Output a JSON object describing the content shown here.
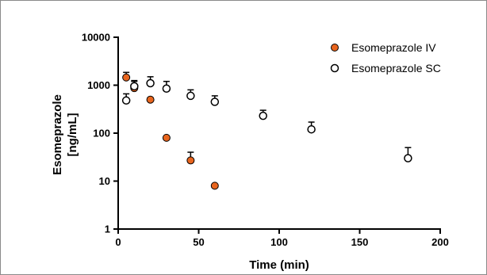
{
  "chart_data": {
    "type": "scatter",
    "xlabel": "Time (min)",
    "ylabel_lines": [
      "Esomeprazole",
      "[ng/mL]"
    ],
    "xlim": [
      0,
      200
    ],
    "ylim": [
      1,
      10000
    ],
    "yscale": "log",
    "x_ticks": [
      0,
      50,
      100,
      150,
      200
    ],
    "x_tick_labels": [
      "0",
      "50",
      "100",
      "150",
      "200"
    ],
    "y_ticks": [
      1,
      10,
      100,
      1000,
      10000
    ],
    "y_tick_labels": [
      "1",
      "10",
      "100",
      "1000",
      "10000"
    ],
    "grid": false,
    "legend_position": "top-right",
    "series": [
      {
        "name": "Esomeprazole IV",
        "marker": "filled-circle",
        "color": "#e8651e",
        "points": [
          {
            "x": 5,
            "y": 1450,
            "err": 1850
          },
          {
            "x": 10,
            "y": 870,
            "err": 1200
          },
          {
            "x": 20,
            "y": 500,
            "err": null
          },
          {
            "x": 30,
            "y": 80,
            "err": null
          },
          {
            "x": 45,
            "y": 27,
            "err": 40
          },
          {
            "x": 60,
            "y": 8,
            "err": null
          }
        ]
      },
      {
        "name": "Esomeprazole SC",
        "marker": "open-circle",
        "color": "#000000",
        "points": [
          {
            "x": 5,
            "y": 480,
            "err": 660
          },
          {
            "x": 10,
            "y": 950,
            "err": 1250
          },
          {
            "x": 20,
            "y": 1100,
            "err": 1500
          },
          {
            "x": 30,
            "y": 850,
            "err": 1200
          },
          {
            "x": 45,
            "y": 600,
            "err": 800
          },
          {
            "x": 60,
            "y": 450,
            "err": 600
          },
          {
            "x": 90,
            "y": 230,
            "err": 300
          },
          {
            "x": 120,
            "y": 120,
            "err": 170
          },
          {
            "x": 180,
            "y": 30,
            "err": 50
          }
        ]
      }
    ]
  }
}
